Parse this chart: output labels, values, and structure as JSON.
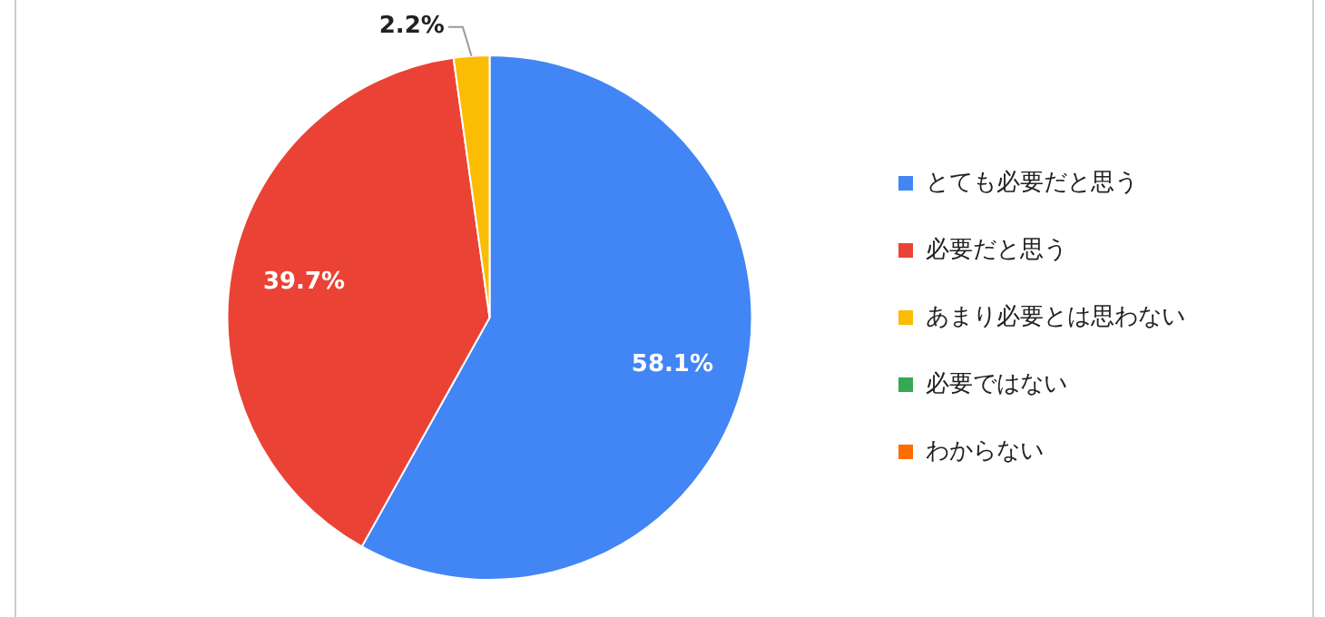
{
  "chart_data": {
    "type": "pie",
    "categories": [
      "とても必要だと思う",
      "必要だと思う",
      "あまり必要とは思わない",
      "必要ではない",
      "わからない"
    ],
    "values": [
      58.1,
      39.7,
      2.2,
      0,
      0
    ],
    "colors": [
      "#4285f4",
      "#ea4335",
      "#fbbc04",
      "#34a853",
      "#ff6d01"
    ],
    "value_labels": [
      "58.1%",
      "39.7%",
      "2.2%",
      null,
      null
    ],
    "legend": "right"
  }
}
